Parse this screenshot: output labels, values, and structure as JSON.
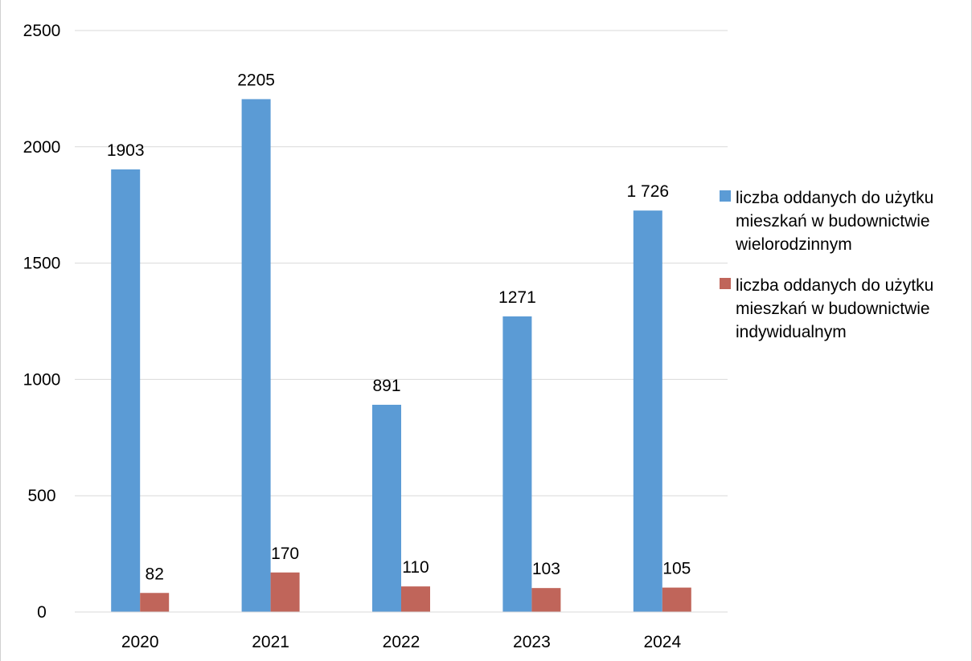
{
  "chart_data": {
    "type": "bar",
    "title": "",
    "categories": [
      "2020",
      "2021",
      "2022",
      "2023",
      "2024"
    ],
    "series": [
      {
        "name": "liczba oddanych do użytku mieszkań w budownictwie wielorodzinnym",
        "color": "#5B9BD5",
        "values": [
          1903,
          2205,
          891,
          1271,
          1726
        ],
        "labels": [
          "1903",
          "2205",
          "891",
          "1271",
          "1 726"
        ]
      },
      {
        "name": "liczba oddanych do użytku mieszkań w budownictwie indywidualnym",
        "color": "#C0655A",
        "values": [
          82,
          170,
          110,
          103,
          105
        ],
        "labels": [
          "82",
          "170",
          "110",
          "103",
          "105"
        ]
      }
    ],
    "yticks": [
      "0",
      "500",
      "1000",
      "1500",
      "2000",
      "2500"
    ],
    "ylim": [
      0,
      2500
    ],
    "grid": true,
    "legend_position": "right",
    "xlabel": "",
    "ylabel": ""
  }
}
